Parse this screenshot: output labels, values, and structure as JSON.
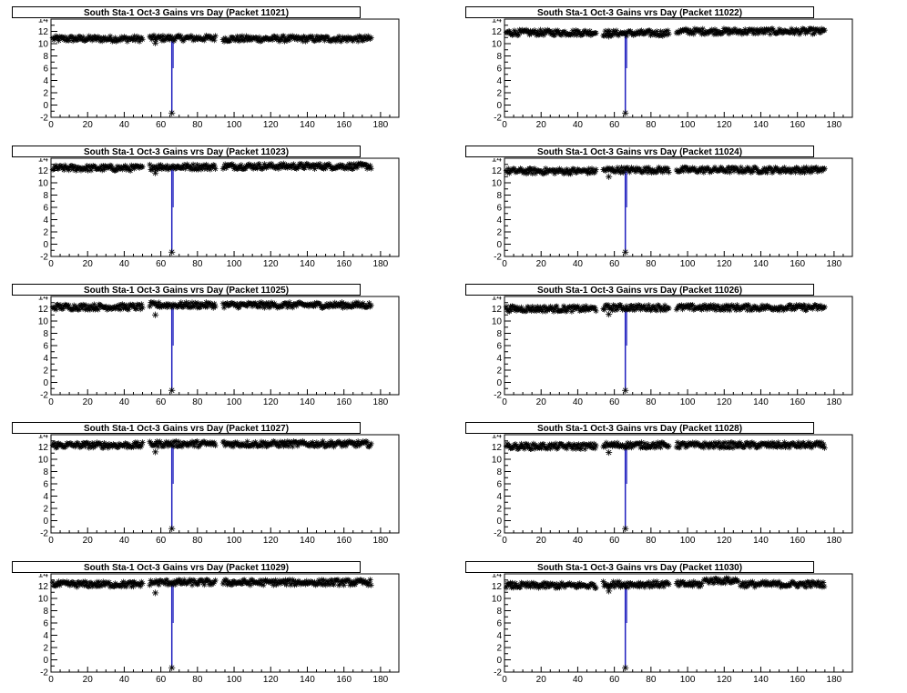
{
  "colors": {
    "frame": "#000000",
    "markers": "#000000",
    "dip_line": "#1f1fbf",
    "background": "#ffffff"
  },
  "chart_data": [
    {
      "type": "scatter",
      "title": "South Sta-1 Oct-3 Gains vrs Day (Packet 11021)",
      "xlim": [
        0,
        190
      ],
      "ylim": [
        -2,
        14
      ],
      "xticks": [
        0,
        20,
        40,
        60,
        80,
        100,
        120,
        140,
        160,
        180
      ],
      "yticks": [
        -2,
        0,
        2,
        4,
        6,
        8,
        10,
        12
      ],
      "marker": "asterisk",
      "x_range": [
        1,
        175
      ],
      "segments": [
        {
          "x": [
            1,
            50
          ],
          "y": 10.8
        },
        {
          "x": [
            54,
            90
          ],
          "y": 10.9
        },
        {
          "x": [
            94,
            175
          ],
          "y": 10.8
        }
      ],
      "outliers": [
        {
          "x": 57,
          "y": 10.1
        },
        {
          "x": 66,
          "y": -1.3
        }
      ],
      "dip": {
        "x": 66,
        "from": 10.8,
        "to": -1.3
      }
    },
    {
      "type": "scatter",
      "title": "South Sta-1 Oct-3 Gains vrs Day (Packet 11022)",
      "xlim": [
        0,
        190
      ],
      "ylim": [
        -2,
        14
      ],
      "xticks": [
        0,
        20,
        40,
        60,
        80,
        100,
        120,
        140,
        160,
        180
      ],
      "yticks": [
        -2,
        0,
        2,
        4,
        6,
        8,
        10,
        12
      ],
      "marker": "asterisk",
      "x_range": [
        1,
        175
      ],
      "segments": [
        {
          "x": [
            1,
            50
          ],
          "y": 11.8
        },
        {
          "x": [
            54,
            90
          ],
          "y": 11.7
        },
        {
          "x": [
            94,
            175
          ],
          "y": 12.0
        }
      ],
      "outliers": [
        {
          "x": 57,
          "y": 11.2
        },
        {
          "x": 66,
          "y": -1.3
        }
      ],
      "dip": {
        "x": 66,
        "from": 11.8,
        "to": -1.3
      }
    },
    {
      "type": "scatter",
      "title": "South Sta-1 Oct-3 Gains vrs Day (Packet 11023)",
      "xlim": [
        0,
        190
      ],
      "ylim": [
        -2,
        14
      ],
      "xticks": [
        0,
        20,
        40,
        60,
        80,
        100,
        120,
        140,
        160,
        180
      ],
      "yticks": [
        -2,
        0,
        2,
        4,
        6,
        8,
        10,
        12
      ],
      "marker": "asterisk",
      "x_range": [
        1,
        175
      ],
      "segments": [
        {
          "x": [
            1,
            50
          ],
          "y": 12.4
        },
        {
          "x": [
            54,
            90
          ],
          "y": 12.6
        },
        {
          "x": [
            94,
            175
          ],
          "y": 12.7
        }
      ],
      "outliers": [
        {
          "x": 57,
          "y": 11.6
        },
        {
          "x": 66,
          "y": -1.3
        }
      ],
      "dip": {
        "x": 66,
        "from": 12.6,
        "to": -1.3
      }
    },
    {
      "type": "scatter",
      "title": "South Sta-1 Oct-3 Gains vrs Day (Packet 11024)",
      "xlim": [
        0,
        190
      ],
      "ylim": [
        -2,
        14
      ],
      "xticks": [
        0,
        20,
        40,
        60,
        80,
        100,
        120,
        140,
        160,
        180
      ],
      "yticks": [
        -2,
        0,
        2,
        4,
        6,
        8,
        10,
        12
      ],
      "marker": "asterisk",
      "x_range": [
        1,
        175
      ],
      "segments": [
        {
          "x": [
            1,
            50
          ],
          "y": 11.9
        },
        {
          "x": [
            54,
            90
          ],
          "y": 12.1
        },
        {
          "x": [
            94,
            175
          ],
          "y": 12.1
        }
      ],
      "outliers": [
        {
          "x": 57,
          "y": 11.0
        },
        {
          "x": 66,
          "y": -1.3
        }
      ],
      "dip": {
        "x": 66,
        "from": 12.0,
        "to": -1.3
      }
    },
    {
      "type": "scatter",
      "title": "South Sta-1 Oct-3 Gains vrs Day (Packet 11025)",
      "xlim": [
        0,
        190
      ],
      "ylim": [
        -2,
        14
      ],
      "xticks": [
        0,
        20,
        40,
        60,
        80,
        100,
        120,
        140,
        160,
        180
      ],
      "yticks": [
        -2,
        0,
        2,
        4,
        6,
        8,
        10,
        12
      ],
      "marker": "asterisk",
      "x_range": [
        1,
        175
      ],
      "segments": [
        {
          "x": [
            1,
            50
          ],
          "y": 12.3
        },
        {
          "x": [
            54,
            90
          ],
          "y": 12.6
        },
        {
          "x": [
            94,
            175
          ],
          "y": 12.6
        }
      ],
      "outliers": [
        {
          "x": 57,
          "y": 11.0
        },
        {
          "x": 66,
          "y": -1.3
        }
      ],
      "dip": {
        "x": 66,
        "from": 12.5,
        "to": -1.3
      }
    },
    {
      "type": "scatter",
      "title": "South Sta-1 Oct-3 Gains vrs Day (Packet 11026)",
      "xlim": [
        0,
        190
      ],
      "ylim": [
        -2,
        14
      ],
      "xticks": [
        0,
        20,
        40,
        60,
        80,
        100,
        120,
        140,
        160,
        180
      ],
      "yticks": [
        -2,
        0,
        2,
        4,
        6,
        8,
        10,
        12
      ],
      "marker": "asterisk",
      "x_range": [
        1,
        175
      ],
      "segments": [
        {
          "x": [
            1,
            50
          ],
          "y": 12.0
        },
        {
          "x": [
            54,
            90
          ],
          "y": 12.2
        },
        {
          "x": [
            94,
            175
          ],
          "y": 12.2
        }
      ],
      "outliers": [
        {
          "x": 57,
          "y": 11.1
        },
        {
          "x": 66,
          "y": -1.3
        }
      ],
      "dip": {
        "x": 66,
        "from": 12.1,
        "to": -1.3
      }
    },
    {
      "type": "scatter",
      "title": "South Sta-1 Oct-3 Gains vrs Day (Packet 11027)",
      "xlim": [
        0,
        190
      ],
      "ylim": [
        -2,
        14
      ],
      "xticks": [
        0,
        20,
        40,
        60,
        80,
        100,
        120,
        140,
        160,
        180
      ],
      "yticks": [
        -2,
        0,
        2,
        4,
        6,
        8,
        10,
        12
      ],
      "marker": "asterisk",
      "x_range": [
        1,
        175
      ],
      "segments": [
        {
          "x": [
            1,
            50
          ],
          "y": 12.3
        },
        {
          "x": [
            54,
            90
          ],
          "y": 12.5
        },
        {
          "x": [
            94,
            175
          ],
          "y": 12.5
        }
      ],
      "outliers": [
        {
          "x": 57,
          "y": 11.2
        },
        {
          "x": 66,
          "y": -1.3
        }
      ],
      "dip": {
        "x": 66,
        "from": 12.4,
        "to": -1.3
      }
    },
    {
      "type": "scatter",
      "title": "South Sta-1 Oct-3 Gains vrs Day (Packet 11028)",
      "xlim": [
        0,
        190
      ],
      "ylim": [
        -2,
        14
      ],
      "xticks": [
        0,
        20,
        40,
        60,
        80,
        100,
        120,
        140,
        160,
        180
      ],
      "yticks": [
        -2,
        0,
        2,
        4,
        6,
        8,
        10,
        12
      ],
      "marker": "asterisk",
      "x_range": [
        1,
        175
      ],
      "segments": [
        {
          "x": [
            1,
            50
          ],
          "y": 12.1
        },
        {
          "x": [
            54,
            90
          ],
          "y": 12.3
        },
        {
          "x": [
            94,
            175
          ],
          "y": 12.3
        }
      ],
      "outliers": [
        {
          "x": 57,
          "y": 11.1
        },
        {
          "x": 66,
          "y": -1.3
        }
      ],
      "dip": {
        "x": 66,
        "from": 12.2,
        "to": -1.3
      }
    },
    {
      "type": "scatter",
      "title": "South Sta-1 Oct-3 Gains vrs Day (Packet 11029)",
      "xlim": [
        0,
        190
      ],
      "ylim": [
        -2,
        14
      ],
      "xticks": [
        0,
        20,
        40,
        60,
        80,
        100,
        120,
        140,
        160,
        180
      ],
      "yticks": [
        -2,
        0,
        2,
        4,
        6,
        8,
        10,
        12
      ],
      "marker": "asterisk",
      "x_range": [
        1,
        175
      ],
      "segments": [
        {
          "x": [
            1,
            50
          ],
          "y": 12.3
        },
        {
          "x": [
            54,
            90
          ],
          "y": 12.6
        },
        {
          "x": [
            94,
            175
          ],
          "y": 12.6
        }
      ],
      "outliers": [
        {
          "x": 45,
          "y": 12.0
        },
        {
          "x": 57,
          "y": 10.9
        },
        {
          "x": 66,
          "y": -1.3
        }
      ],
      "dip": {
        "x": 66,
        "from": 12.5,
        "to": -1.3
      }
    },
    {
      "type": "scatter",
      "title": "South Sta-1 Oct-3 Gains vrs Day (Packet 11030)",
      "xlim": [
        0,
        190
      ],
      "ylim": [
        -2,
        14
      ],
      "xticks": [
        0,
        20,
        40,
        60,
        80,
        100,
        120,
        140,
        160,
        180
      ],
      "yticks": [
        -2,
        0,
        2,
        4,
        6,
        8,
        10,
        12
      ],
      "marker": "asterisk",
      "x_range": [
        1,
        175
      ],
      "segments": [
        {
          "x": [
            1,
            50
          ],
          "y": 12.1
        },
        {
          "x": [
            54,
            90
          ],
          "y": 12.3
        },
        {
          "x": [
            94,
            108
          ],
          "y": 12.3
        },
        {
          "x": [
            109,
            128
          ],
          "y": 12.9
        },
        {
          "x": [
            129,
            175
          ],
          "y": 12.3
        }
      ],
      "outliers": [
        {
          "x": 57,
          "y": 11.2
        },
        {
          "x": 66,
          "y": -1.3
        }
      ],
      "dip": {
        "x": 66,
        "from": 12.2,
        "to": -1.3
      }
    }
  ]
}
